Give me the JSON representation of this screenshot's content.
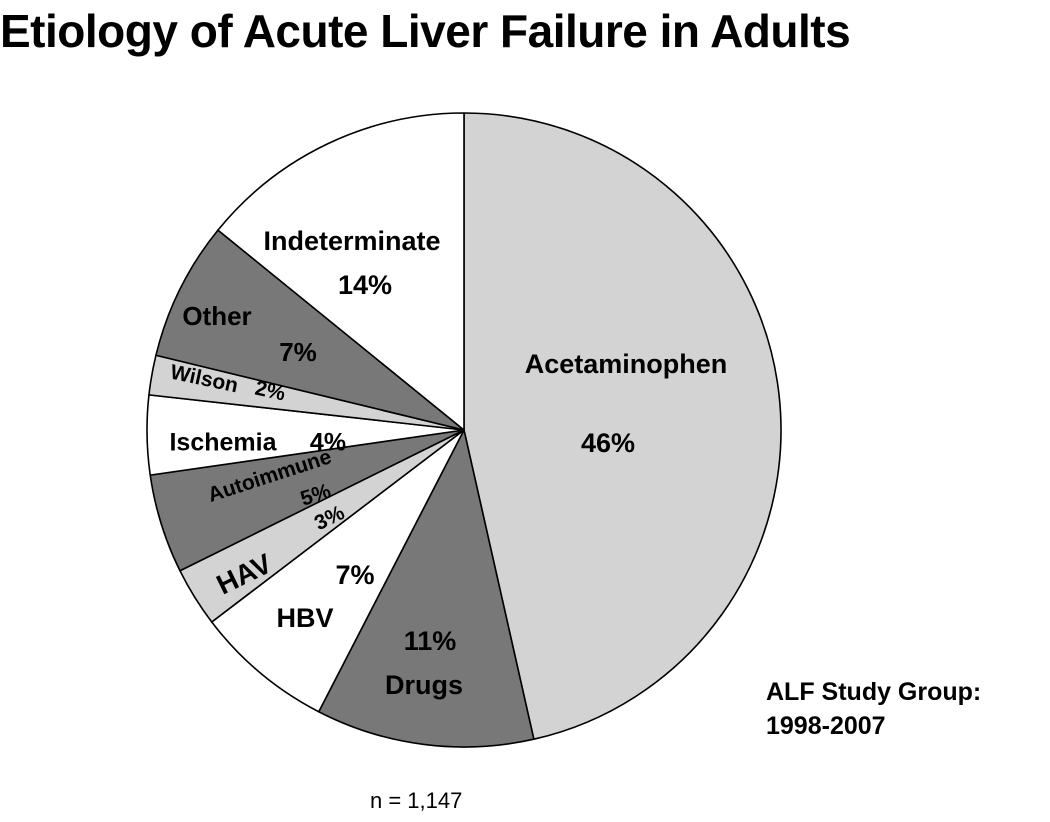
{
  "chart_data": {
    "type": "pie",
    "title": "Etiology of Acute Liver Failure in Adults",
    "slices": [
      {
        "label": "Acetaminophen",
        "value": 46,
        "value_label": "46%",
        "color": "#d3d3d3"
      },
      {
        "label": "Drugs",
        "value": 11,
        "value_label": "11%",
        "color": "#787878"
      },
      {
        "label": "HBV",
        "value": 7,
        "value_label": "7%",
        "color": "#ffffff"
      },
      {
        "label": "HAV",
        "value": 3,
        "value_label": "3%",
        "color": "#d3d3d3"
      },
      {
        "label": "Autoimmune",
        "value": 5,
        "value_label": "5%",
        "color": "#787878"
      },
      {
        "label": "Ischemia",
        "value": 4,
        "value_label": "4%",
        "color": "#ffffff"
      },
      {
        "label": "Wilson",
        "value": 2,
        "value_label": "2%",
        "color": "#d3d3d3"
      },
      {
        "label": "Other",
        "value": 7,
        "value_label": "7%",
        "color": "#787878"
      },
      {
        "label": "Indeterminate",
        "value": 14,
        "value_label": "14%",
        "color": "#ffffff"
      }
    ],
    "start_angle": "12 o'clock",
    "direction": "clockwise",
    "legend": "none"
  },
  "source": {
    "line1": "ALF Study Group:",
    "line2": "1998-2007"
  },
  "sample_size": "n = 1,147"
}
